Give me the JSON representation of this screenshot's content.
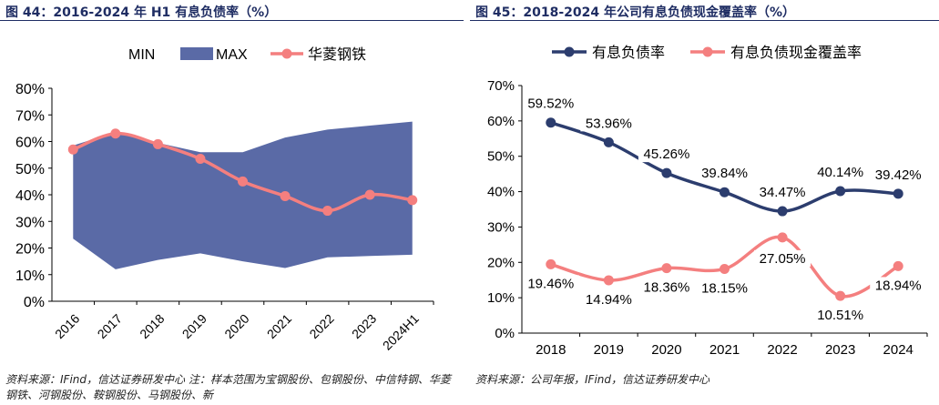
{
  "colors": {
    "max_fill": "#5a6aa6",
    "company_line": "#f47f7f",
    "debt_line": "#2c3d6e",
    "coverage_line": "#f47f7f",
    "title": "#1f2d63"
  },
  "chart_data": [
    {
      "type": "area",
      "title": "图 44：2016-2024 年 H1 有息负债率（%）",
      "source": "资料来源：IFind，信达证券研发中心 注：样本范围为宝钢股份、包钢股份、中信特钢、华菱钢铁、河钢股份、鞍钢股份、马钢股份、新",
      "categories": [
        "2016",
        "2017",
        "2018",
        "2019",
        "2020",
        "2021",
        "2022",
        "2023",
        "2024H1"
      ],
      "series": [
        {
          "name": "MIN",
          "values": [
            23.5,
            12,
            15.5,
            18,
            15,
            12.5,
            16.5,
            17,
            17.5
          ]
        },
        {
          "name": "MAX",
          "values": [
            58.5,
            63.5,
            59.5,
            56,
            56,
            61.5,
            64.5,
            66,
            67.5
          ]
        },
        {
          "name": "华菱钢铁",
          "values": [
            57,
            63,
            59,
            53.5,
            45,
            39.5,
            34,
            40,
            38
          ]
        }
      ],
      "yticks": [
        "0%",
        "10%",
        "20%",
        "30%",
        "40%",
        "50%",
        "60%",
        "70%",
        "80%"
      ],
      "ylim": [
        0,
        80
      ],
      "legend": "top"
    },
    {
      "type": "line",
      "title": "图 45：2018-2024 年公司有息负债现金覆盖率（%）",
      "source": "资料来源：公司年报，IFind，信达证券研发中心",
      "categories": [
        "2018",
        "2019",
        "2020",
        "2021",
        "2022",
        "2023",
        "2024"
      ],
      "series": [
        {
          "name": "有息负债率",
          "values": [
            59.52,
            53.96,
            45.26,
            39.84,
            34.47,
            40.14,
            39.42
          ],
          "labels": [
            "59.52%",
            "53.96%",
            "45.26%",
            "39.84%",
            "34.47%",
            "40.14%",
            "39.42%"
          ]
        },
        {
          "name": "有息负债现金覆盖率",
          "values": [
            19.46,
            14.94,
            18.36,
            18.15,
            27.05,
            10.51,
            18.94
          ],
          "labels": [
            "19.46%",
            "14.94%",
            "18.36%",
            "18.15%",
            "27.05%",
            "10.51%",
            "18.94%"
          ]
        }
      ],
      "yticks": [
        "0%",
        "10%",
        "20%",
        "30%",
        "40%",
        "50%",
        "60%",
        "70%"
      ],
      "ylim": [
        0,
        70
      ],
      "legend": "top"
    }
  ]
}
